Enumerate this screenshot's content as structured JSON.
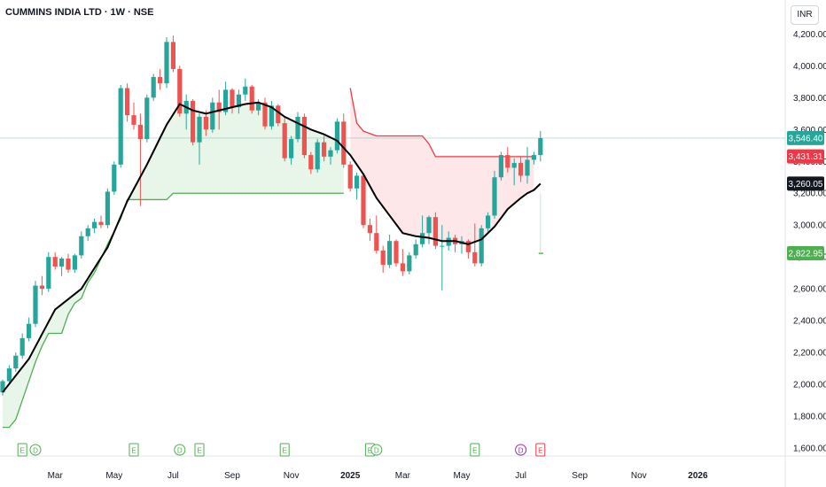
{
  "header": {
    "title": "CUMMINS INDIA LTD · 1W · NSE",
    "currency": "INR"
  },
  "colors": {
    "up": "#26a69a",
    "down": "#ef5350",
    "ma": "#000000",
    "support": "#4caf50",
    "resistance": "#f23645",
    "support_fill": "#e8f5e9",
    "resistance_fill": "#fde7e9",
    "price_line": "#26a69a"
  },
  "chart_data": {
    "type": "candlestick",
    "title": "CUMMINS INDIA LTD · 1W · NSE",
    "ylim": [
      1550,
      4330
    ],
    "y_ticks": [
      "4,200.00",
      "4,000.00",
      "3,800.00",
      "3,600.00",
      "3,400.00",
      "3,200.00",
      "3,000.00",
      "2,800.00",
      "2,600.00",
      "2,400.00",
      "2,200.00",
      "2,000.00",
      "1,800.00",
      "1,600.00"
    ],
    "x_ticks": [
      {
        "label": "Mar",
        "week": 8
      },
      {
        "label": "May",
        "week": 17
      },
      {
        "label": "Jul",
        "week": 26
      },
      {
        "label": "Sep",
        "week": 35
      },
      {
        "label": "Nov",
        "week": 44
      },
      {
        "label": "2025",
        "week": 53
      },
      {
        "label": "Mar",
        "week": 61
      },
      {
        "label": "May",
        "week": 70
      },
      {
        "label": "Jul",
        "week": 79
      },
      {
        "label": "Sep",
        "week": 88
      },
      {
        "label": "Nov",
        "week": 97
      },
      {
        "label": "2026",
        "week": 106
      }
    ],
    "price_labels": [
      {
        "label": "3,546.40",
        "value": 3546.4,
        "kind": "last"
      },
      {
        "label": "3,431.31",
        "value": 3431.31,
        "kind": "resistance"
      },
      {
        "label": "3,260.05",
        "value": 3260.05,
        "kind": "ma"
      },
      {
        "label": "2,822.95",
        "value": 2822.95,
        "kind": "support"
      }
    ],
    "candles": [
      [
        1950,
        2030,
        1930,
        2020
      ],
      [
        2020,
        2120,
        2000,
        2100
      ],
      [
        2100,
        2200,
        2080,
        2180
      ],
      [
        2180,
        2320,
        2160,
        2290
      ],
      [
        2290,
        2420,
        2270,
        2380
      ],
      [
        2380,
        2650,
        2360,
        2620
      ],
      [
        2620,
        2680,
        2560,
        2600
      ],
      [
        2600,
        2830,
        2580,
        2800
      ],
      [
        2800,
        2830,
        2720,
        2740
      ],
      [
        2740,
        2800,
        2680,
        2790
      ],
      [
        2790,
        2820,
        2700,
        2720
      ],
      [
        2720,
        2820,
        2700,
        2810
      ],
      [
        2810,
        2960,
        2790,
        2930
      ],
      [
        2930,
        3000,
        2900,
        2980
      ],
      [
        2980,
        3040,
        2950,
        3020
      ],
      [
        3020,
        3060,
        2980,
        3000
      ],
      [
        3000,
        3230,
        2980,
        3210
      ],
      [
        3210,
        3400,
        3190,
        3380
      ],
      [
        3380,
        3880,
        3360,
        3860
      ],
      [
        3860,
        3890,
        3650,
        3690
      ],
      [
        3690,
        3770,
        3600,
        3630
      ],
      [
        3630,
        3700,
        3120,
        3540
      ],
      [
        3540,
        3820,
        3520,
        3800
      ],
      [
        3800,
        3950,
        3780,
        3930
      ],
      [
        3930,
        3980,
        3850,
        3890
      ],
      [
        3890,
        4180,
        3860,
        4150
      ],
      [
        4150,
        4190,
        3960,
        3980
      ],
      [
        3980,
        4000,
        3680,
        3700
      ],
      [
        3700,
        3820,
        3600,
        3780
      ],
      [
        3780,
        3790,
        3500,
        3520
      ],
      [
        3520,
        3700,
        3380,
        3680
      ],
      [
        3680,
        3720,
        3560,
        3600
      ],
      [
        3600,
        3800,
        3580,
        3770
      ],
      [
        3770,
        3850,
        3600,
        3710
      ],
      [
        3710,
        3900,
        3690,
        3850
      ],
      [
        3850,
        3860,
        3700,
        3740
      ],
      [
        3740,
        3850,
        3700,
        3820
      ],
      [
        3820,
        3920,
        3780,
        3870
      ],
      [
        3870,
        3880,
        3700,
        3720
      ],
      [
        3720,
        3790,
        3690,
        3770
      ],
      [
        3770,
        3800,
        3600,
        3620
      ],
      [
        3620,
        3780,
        3600,
        3750
      ],
      [
        3750,
        3760,
        3620,
        3640
      ],
      [
        3640,
        3680,
        3400,
        3420
      ],
      [
        3420,
        3560,
        3380,
        3540
      ],
      [
        3540,
        3710,
        3520,
        3680
      ],
      [
        3680,
        3700,
        3420,
        3440
      ],
      [
        3440,
        3460,
        3320,
        3350
      ],
      [
        3350,
        3540,
        3330,
        3520
      ],
      [
        3520,
        3560,
        3400,
        3430
      ],
      [
        3430,
        3490,
        3380,
        3470
      ],
      [
        3470,
        3670,
        3450,
        3650
      ],
      [
        3650,
        3700,
        3360,
        3380
      ],
      [
        3380,
        3400,
        3210,
        3230
      ],
      [
        3230,
        3330,
        3160,
        3310
      ],
      [
        3310,
        3320,
        2980,
        3000
      ],
      [
        3000,
        3040,
        2900,
        2950
      ],
      [
        2950,
        3060,
        2820,
        2840
      ],
      [
        2840,
        2870,
        2700,
        2750
      ],
      [
        2750,
        2940,
        2730,
        2900
      ],
      [
        2900,
        2910,
        2740,
        2760
      ],
      [
        2760,
        2850,
        2680,
        2710
      ],
      [
        2710,
        2830,
        2690,
        2810
      ],
      [
        2810,
        2910,
        2790,
        2880
      ],
      [
        2880,
        3060,
        2860,
        2950
      ],
      [
        2950,
        3060,
        2880,
        3050
      ],
      [
        3050,
        3080,
        2850,
        2870
      ],
      [
        2870,
        3000,
        2590,
        2870
      ],
      [
        2870,
        2960,
        2840,
        2920
      ],
      [
        2920,
        2940,
        2830,
        2880
      ],
      [
        2880,
        2930,
        2820,
        2900
      ],
      [
        2900,
        2910,
        2790,
        2830
      ],
      [
        2830,
        3010,
        2740,
        2760
      ],
      [
        2760,
        3000,
        2740,
        2980
      ],
      [
        2980,
        3080,
        2960,
        3060
      ],
      [
        3060,
        3340,
        3040,
        3300
      ],
      [
        3300,
        3460,
        3280,
        3440
      ],
      [
        3440,
        3490,
        3330,
        3360
      ],
      [
        3360,
        3420,
        3250,
        3390
      ],
      [
        3390,
        3430,
        3270,
        3310
      ],
      [
        3310,
        3490,
        3260,
        3410
      ],
      [
        3410,
        3460,
        3380,
        3440
      ],
      [
        3440,
        3590,
        3400,
        3546
      ]
    ],
    "ma": [
      [
        0,
        1950
      ],
      [
        4,
        2160
      ],
      [
        8,
        2470
      ],
      [
        12,
        2600
      ],
      [
        16,
        2860
      ],
      [
        19,
        3150
      ],
      [
        22,
        3380
      ],
      [
        25,
        3630
      ],
      [
        27,
        3760
      ],
      [
        29,
        3720
      ],
      [
        31,
        3700
      ],
      [
        33,
        3720
      ],
      [
        35,
        3740
      ],
      [
        37,
        3760
      ],
      [
        39,
        3770
      ],
      [
        41,
        3740
      ],
      [
        43,
        3680
      ],
      [
        45,
        3640
      ],
      [
        47,
        3600
      ],
      [
        49,
        3570
      ],
      [
        51,
        3530
      ],
      [
        53,
        3440
      ],
      [
        55,
        3320
      ],
      [
        57,
        3170
      ],
      [
        59,
        3060
      ],
      [
        61,
        2950
      ],
      [
        63,
        2930
      ],
      [
        65,
        2920
      ],
      [
        67,
        2900
      ],
      [
        69,
        2900
      ],
      [
        71,
        2880
      ],
      [
        73,
        2910
      ],
      [
        75,
        2990
      ],
      [
        77,
        3100
      ],
      [
        79,
        3170
      ],
      [
        80,
        3200
      ],
      [
        81,
        3220
      ],
      [
        82,
        3260
      ]
    ],
    "support_line": [
      [
        0,
        1730
      ],
      [
        1,
        1730
      ],
      [
        2,
        1780
      ],
      [
        3,
        1900
      ],
      [
        4,
        2020
      ],
      [
        5,
        2140
      ],
      [
        6,
        2240
      ],
      [
        7,
        2320
      ],
      [
        8,
        2320
      ],
      [
        9,
        2320
      ],
      [
        10,
        2440
      ],
      [
        11,
        2510
      ],
      [
        12,
        2540
      ],
      [
        13,
        2640
      ],
      [
        14,
        2700
      ],
      [
        15,
        2790
      ],
      [
        16,
        2880
      ],
      [
        17,
        2960
      ],
      [
        18,
        3040
      ],
      [
        19,
        3160
      ],
      [
        20,
        3160
      ],
      [
        21,
        3160
      ],
      [
        22,
        3160
      ],
      [
        23,
        3160
      ],
      [
        24,
        3160
      ],
      [
        25,
        3160
      ],
      [
        26,
        3200
      ],
      [
        27,
        3200
      ],
      [
        52,
        3200
      ]
    ],
    "resistance_line": [
      [
        53,
        3860
      ],
      [
        54,
        3640
      ],
      [
        55,
        3590
      ],
      [
        57,
        3560
      ],
      [
        59,
        3560
      ],
      [
        60,
        3560
      ],
      [
        64,
        3560
      ],
      [
        65,
        3510
      ],
      [
        66,
        3430
      ],
      [
        70,
        3430
      ],
      [
        80,
        3430
      ],
      [
        81,
        3430
      ]
    ],
    "events": [
      {
        "label": "E",
        "week": 3,
        "style": "green"
      },
      {
        "label": "D",
        "week": 5,
        "style": "green"
      },
      {
        "label": "E",
        "week": 20,
        "style": "green"
      },
      {
        "label": "D",
        "week": 27,
        "style": "green"
      },
      {
        "label": "E",
        "week": 30,
        "style": "green"
      },
      {
        "label": "E",
        "week": 43,
        "style": "green"
      },
      {
        "label": "E",
        "week": 56,
        "style": "green"
      },
      {
        "label": "D",
        "week": 57,
        "style": "green"
      },
      {
        "label": "E",
        "week": 72,
        "style": "green"
      },
      {
        "label": "D",
        "week": 79,
        "style": "purple"
      },
      {
        "label": "E",
        "week": 82,
        "style": "red"
      }
    ]
  }
}
